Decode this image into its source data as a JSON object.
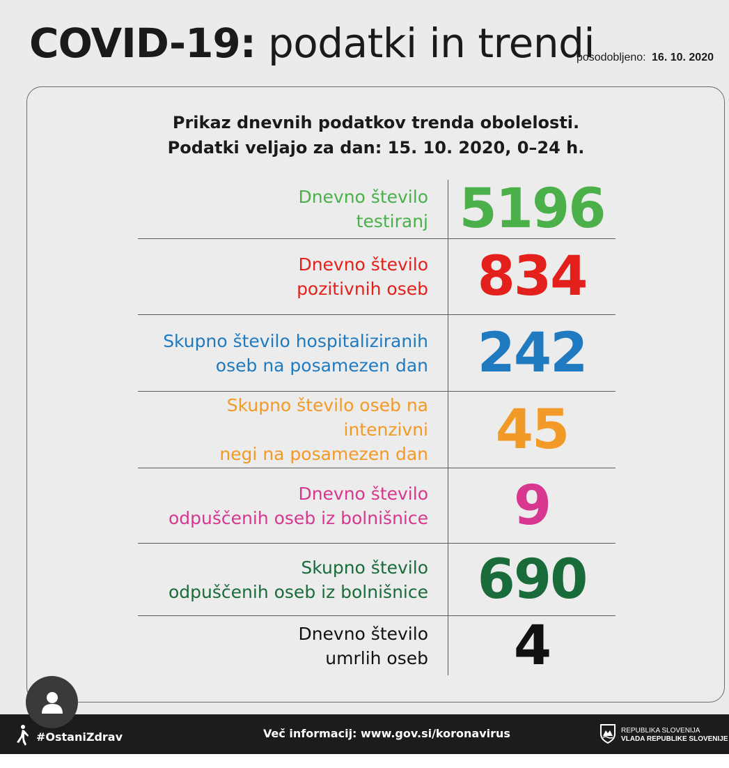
{
  "header": {
    "title_bold": "COVID-19:",
    "title_rest": "podatki in trendi",
    "updated_label": "posodobljeno:",
    "updated_date": "16. 10. 2020"
  },
  "subtitle": {
    "line1": "Prikaz dnevnih podatkov trenda obolelosti.",
    "line2": "Podatki veljajo za dan: 15. 10. 2020, 0–24 h."
  },
  "stats": [
    {
      "line1": "Dnevno število",
      "line2": "testiranj",
      "value": "5196",
      "color": "#4bb04a"
    },
    {
      "line1": "Dnevno število",
      "line2": "pozitivnih oseb",
      "value": "834",
      "color": "#e3201c"
    },
    {
      "line1": "Skupno število hospitaliziranih",
      "line2": "oseb na posamezen dan",
      "value": "242",
      "color": "#1f7ac0"
    },
    {
      "line1": "Skupno število oseb na intenzivni",
      "line2": "negi na posamezen dan",
      "value": "45",
      "color": "#f29a27"
    },
    {
      "line1": "Dnevno število",
      "line2": "odpuščenih oseb iz bolnišnice",
      "value": "9",
      "color": "#d8378f"
    },
    {
      "line1": "Skupno število",
      "line2": "odpuščenih oseb iz bolnišnice",
      "value": "690",
      "color": "#1a6b3a"
    },
    {
      "line1": "Dnevno število",
      "line2": "umrlih oseb",
      "value": "4",
      "color": "#111111"
    }
  ],
  "footer": {
    "hashtag": "#OstaniZdrav",
    "info": "Več informacij: www.gov.si/koronavirus",
    "gov_line1": "REPUBLIKA SLOVENIJA",
    "gov_line2": "VLADA REPUBLIKE SLOVENIJE"
  },
  "icons": {
    "avatar": "user-avatar-icon",
    "figure": "stay-healthy-figure-icon",
    "crest": "slovenia-crest-icon"
  }
}
